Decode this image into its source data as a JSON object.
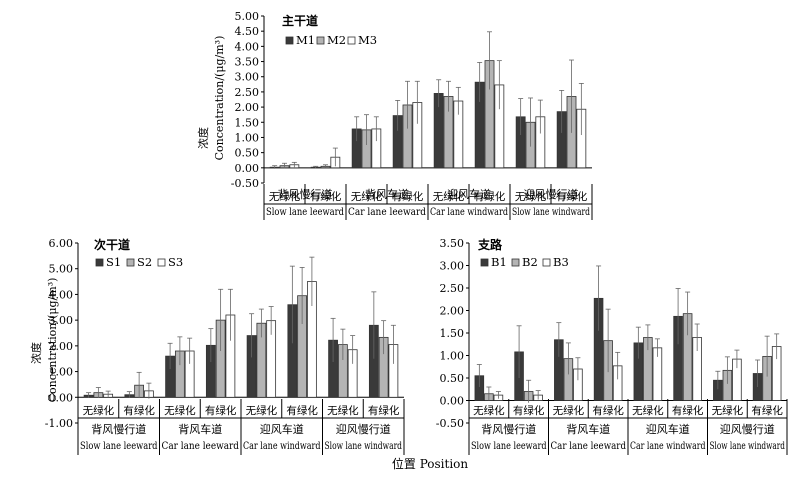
{
  "chart_data": [
    {
      "type": "bar",
      "title": "主干道",
      "ylabel_cn": "浓度",
      "ylabel_en": "Concentration/(μg/m³)",
      "ylim": [
        -0.5,
        5.0
      ],
      "yticks": [
        "-0.50",
        "0.00",
        "0.50",
        "1.00",
        "1.50",
        "2.00",
        "2.50",
        "3.00",
        "3.50",
        "4.00",
        "4.50",
        "5.00"
      ],
      "categories": [
        "无绿化",
        "有绿化",
        "无绿化",
        "有绿化",
        "无绿化",
        "有绿化",
        "无绿化",
        "有绿化"
      ],
      "groups": [
        {
          "cn": "背风慢行道",
          "en": "Slow lane leeward"
        },
        {
          "cn": "背风车道",
          "en": "Car lane leeward"
        },
        {
          "cn": "迎风车道",
          "en": "Car lane windward"
        },
        {
          "cn": "迎风慢行道",
          "en": "Slow lane windward"
        }
      ],
      "series": [
        {
          "name": "M1",
          "values": [
            0.02,
            0.02,
            1.28,
            1.72,
            2.45,
            2.82,
            1.68,
            1.85
          ],
          "errors": [
            0.05,
            0.03,
            0.4,
            0.5,
            0.45,
            0.65,
            0.6,
            0.7
          ]
        },
        {
          "name": "M2",
          "values": [
            0.07,
            0.05,
            1.25,
            2.07,
            2.35,
            3.53,
            1.5,
            2.35
          ],
          "errors": [
            0.08,
            0.05,
            0.5,
            0.78,
            0.5,
            0.95,
            0.8,
            1.2
          ]
        },
        {
          "name": "M3",
          "values": [
            0.1,
            0.35,
            1.28,
            2.15,
            2.2,
            2.73,
            1.68,
            1.93
          ],
          "errors": [
            0.08,
            0.3,
            0.4,
            0.7,
            0.45,
            0.8,
            0.55,
            0.85
          ]
        }
      ],
      "colors": [
        "#3a3a3a",
        "#b4b4b4",
        "#ffffff"
      ],
      "legend_position": "top"
    },
    {
      "type": "bar",
      "title": "次干道",
      "ylabel_cn": "浓度",
      "ylabel_en": "Concentration/(μg/m³)",
      "ylim": [
        -1.0,
        6.0
      ],
      "yticks": [
        "-1.00",
        "0.00",
        "1.00",
        "2.00",
        "3.00",
        "4.00",
        "5.00",
        "6.00"
      ],
      "categories": [
        "无绿化",
        "有绿化",
        "无绿化",
        "有绿化",
        "无绿化",
        "有绿化",
        "无绿化",
        "有绿化"
      ],
      "groups": [
        {
          "cn": "背风慢行道",
          "en": "Slow lane leeward"
        },
        {
          "cn": "背风车道",
          "en": "Car lane leeward"
        },
        {
          "cn": "迎风车道",
          "en": "Car lane windward"
        },
        {
          "cn": "迎风慢行道",
          "en": "Slow lane windward"
        }
      ],
      "series": [
        {
          "name": "S1",
          "values": [
            0.08,
            0.1,
            1.6,
            2.02,
            2.4,
            3.6,
            2.22,
            2.8
          ],
          "errors": [
            0.1,
            0.12,
            0.5,
            0.65,
            0.85,
            1.5,
            0.85,
            1.3
          ]
        },
        {
          "name": "S2",
          "values": [
            0.18,
            0.47,
            1.8,
            3.0,
            2.88,
            3.95,
            2.05,
            2.33
          ],
          "errors": [
            0.2,
            0.5,
            0.55,
            1.2,
            0.55,
            1.1,
            0.6,
            0.65
          ]
        },
        {
          "name": "S3",
          "values": [
            0.12,
            0.25,
            1.8,
            3.2,
            2.98,
            4.5,
            1.85,
            2.05
          ],
          "errors": [
            0.12,
            0.3,
            0.5,
            1.0,
            0.55,
            0.95,
            0.55,
            0.75
          ]
        }
      ],
      "colors": [
        "#3a3a3a",
        "#b4b4b4",
        "#ffffff"
      ],
      "legend_position": "top"
    },
    {
      "type": "bar",
      "title": "支路",
      "ylabel_cn": "",
      "ylabel_en": "",
      "ylim": [
        -0.5,
        3.5
      ],
      "yticks": [
        "-0.50",
        "0.00",
        "0.50",
        "1.00",
        "1.50",
        "2.00",
        "2.50",
        "3.00",
        "3.50"
      ],
      "categories": [
        "无绿化",
        "有绿化",
        "无绿化",
        "有绿化",
        "无绿化",
        "有绿化",
        "无绿化",
        "有绿化"
      ],
      "groups": [
        {
          "cn": "背风慢行道",
          "en": "Slow lane leeward"
        },
        {
          "cn": "背风车道",
          "en": "Car lane leeward"
        },
        {
          "cn": "迎风车道",
          "en": "Car lane windward"
        },
        {
          "cn": "迎风慢行道",
          "en": "Slow lane windward"
        }
      ],
      "series": [
        {
          "name": "B1",
          "values": [
            0.55,
            1.08,
            1.35,
            2.27,
            1.28,
            1.87,
            0.45,
            0.6
          ],
          "errors": [
            0.25,
            0.58,
            0.38,
            0.72,
            0.35,
            0.62,
            0.2,
            0.3
          ]
        },
        {
          "name": "B2",
          "values": [
            0.15,
            0.2,
            0.93,
            1.33,
            1.4,
            1.93,
            0.67,
            0.98
          ],
          "errors": [
            0.15,
            0.25,
            0.35,
            0.7,
            0.28,
            0.48,
            0.3,
            0.45
          ]
        },
        {
          "name": "B3",
          "values": [
            0.12,
            0.12,
            0.7,
            0.77,
            1.17,
            1.4,
            0.92,
            1.2
          ],
          "errors": [
            0.08,
            0.1,
            0.25,
            0.3,
            0.2,
            0.3,
            0.2,
            0.28
          ]
        }
      ],
      "colors": [
        "#3a3a3a",
        "#b4b4b4",
        "#ffffff"
      ],
      "legend_position": "top"
    }
  ],
  "xlabel": "位置 Position"
}
